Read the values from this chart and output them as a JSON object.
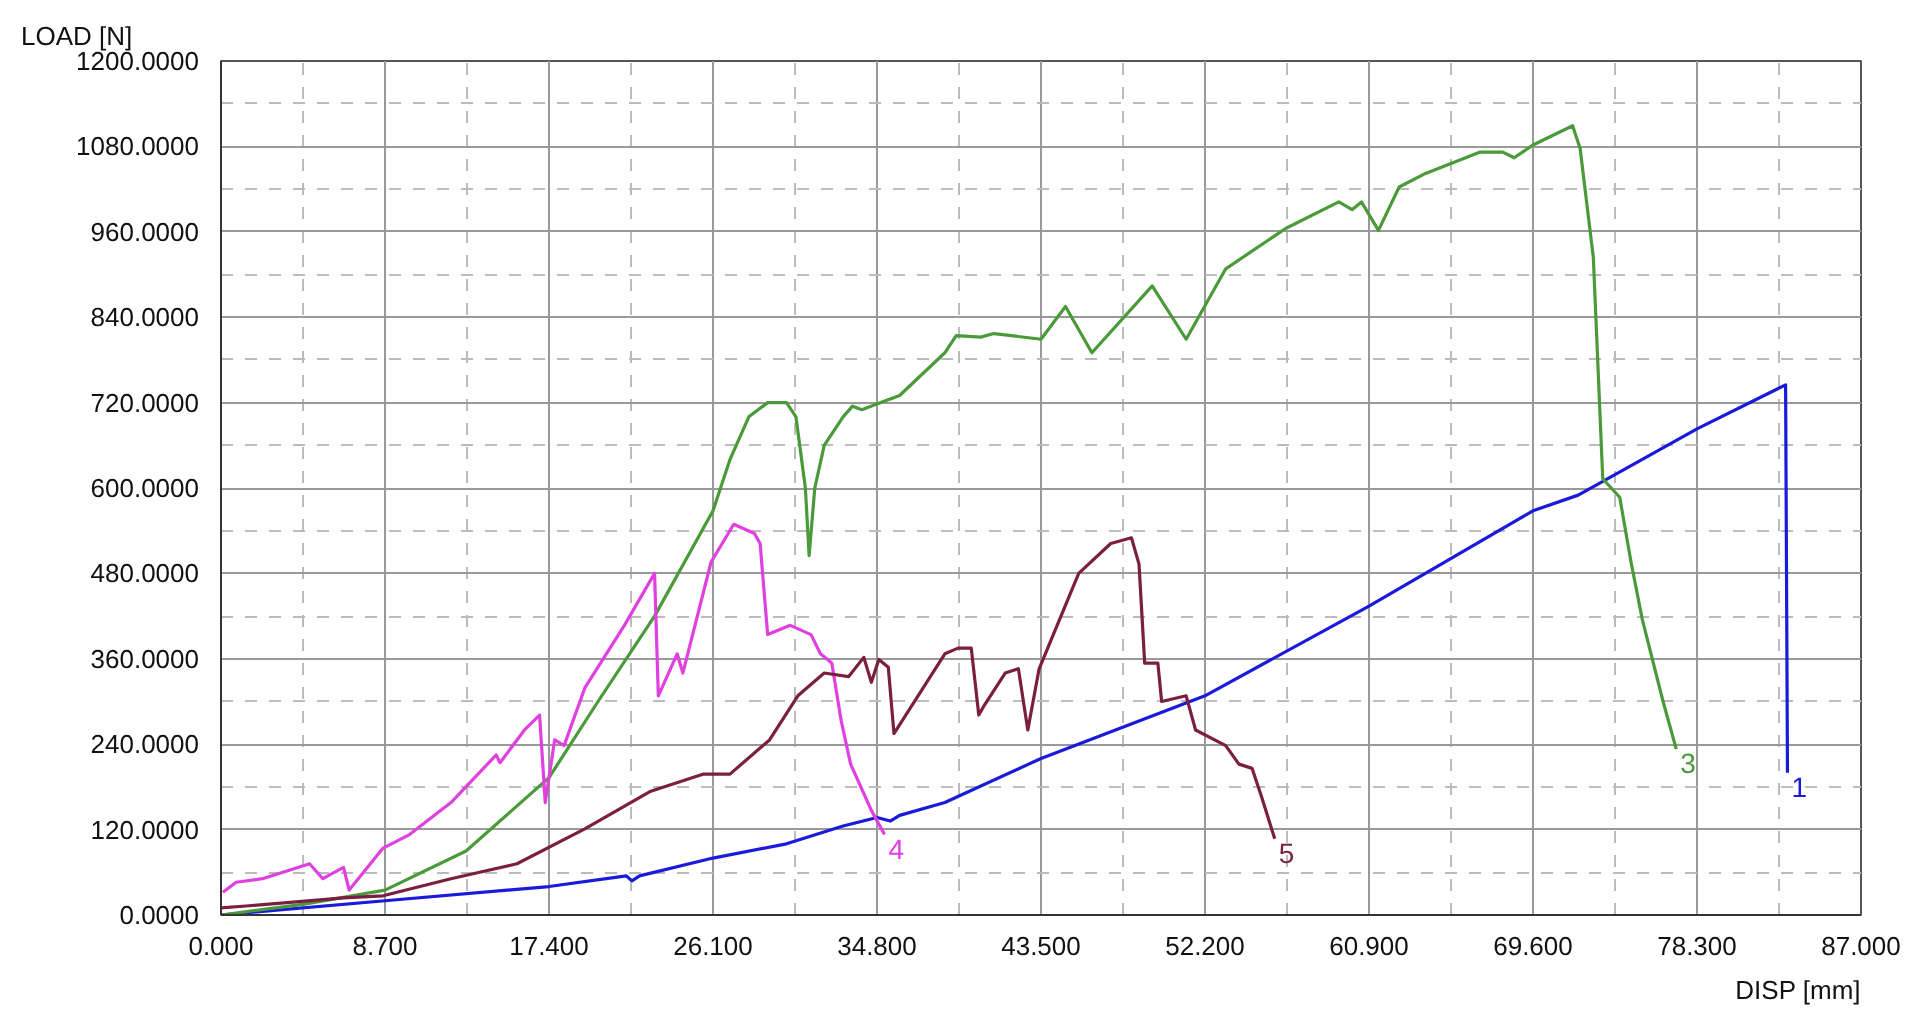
{
  "chart_data": {
    "type": "line",
    "xlabel": "DISP [mm]",
    "ylabel": "LOAD [N]",
    "xlim": [
      0,
      87
    ],
    "ylim": [
      0,
      1200
    ],
    "xticks": [
      {
        "value": 0,
        "label": "0.000"
      },
      {
        "value": 8.7,
        "label": "8.700"
      },
      {
        "value": 17.4,
        "label": "17.400"
      },
      {
        "value": 26.1,
        "label": "26.100"
      },
      {
        "value": 34.8,
        "label": "34.800"
      },
      {
        "value": 43.5,
        "label": "43.500"
      },
      {
        "value": 52.2,
        "label": "52.200"
      },
      {
        "value": 60.9,
        "label": "60.900"
      },
      {
        "value": 69.6,
        "label": "69.600"
      },
      {
        "value": 78.3,
        "label": "78.300"
      },
      {
        "value": 87,
        "label": "87.000"
      }
    ],
    "yticks": [
      {
        "value": 0,
        "label": "0.0000"
      },
      {
        "value": 120,
        "label": "120.0000"
      },
      {
        "value": 240,
        "label": "240.0000"
      },
      {
        "value": 360,
        "label": "360.0000"
      },
      {
        "value": 480,
        "label": "480.0000"
      },
      {
        "value": 600,
        "label": "600.0000"
      },
      {
        "value": 720,
        "label": "720.0000"
      },
      {
        "value": 840,
        "label": "840.0000"
      },
      {
        "value": 960,
        "label": "960.0000"
      },
      {
        "value": 1080,
        "label": "1080.0000"
      },
      {
        "value": 1200,
        "label": "1200.0000"
      }
    ],
    "grid": true,
    "series": [
      {
        "name": "1",
        "color": "#1a1adc",
        "x": [
          0,
          8.7,
          17.4,
          21.5,
          21.8,
          22.2,
          26.1,
          30,
          33,
          34.8,
          35.5,
          36,
          38.4,
          43.5,
          52.2,
          60.9,
          69.6,
          72,
          78.3,
          83.0,
          83.1
        ],
        "values": [
          0,
          20,
          40,
          55,
          48,
          55,
          80,
          100,
          125,
          137,
          132,
          140,
          158,
          220,
          308,
          434,
          568,
          590,
          683,
          745,
          200
        ]
      },
      {
        "name": "3",
        "color": "#4a9a3a",
        "x": [
          0,
          4.35,
          8.7,
          13,
          17.4,
          20,
          23,
          26.1,
          27,
          28,
          29,
          30,
          30.5,
          31,
          31.2,
          31.5,
          32,
          33,
          33.5,
          34,
          35,
          36,
          38.4,
          39,
          40.3,
          41,
          43.5,
          44.8,
          46.2,
          49.4,
          51.2,
          53.3,
          56.5,
          59.3,
          60,
          60.5,
          61.4,
          62.5,
          63.9,
          66.8,
          68,
          68.6,
          69.6,
          71.7,
          72.1,
          72.8,
          73.3,
          74.2,
          74.8,
          75.4,
          76.5,
          77.2
        ],
        "values": [
          0,
          15,
          35,
          90,
          193,
          300,
          420,
          568,
          640,
          700,
          720,
          720,
          700,
          600,
          505,
          600,
          660,
          700,
          715,
          710,
          720,
          730,
          790,
          814,
          812,
          817,
          809,
          855,
          790,
          884,
          809,
          908,
          965,
          1002,
          991,
          1002,
          962,
          1023,
          1042,
          1072,
          1072,
          1064,
          1082,
          1109,
          1077,
          924,
          613,
          587,
          496,
          415,
          300,
          233
        ]
      },
      {
        "name": "4",
        "color": "#e040e0",
        "x": [
          0.1,
          0.8,
          2.2,
          4.7,
          5.4,
          6.5,
          6.8,
          8.6,
          10.0,
          12.2,
          14.6,
          14.8,
          16.1,
          16.9,
          17.2,
          17.7,
          18.2,
          19.3,
          21.4,
          23.0,
          23.2,
          24.2,
          24.5,
          26.0,
          27.2,
          28.3,
          28.6,
          29.0,
          30.2,
          31.3,
          31.8,
          32.4,
          32.9,
          33.4,
          34.5,
          35.2
        ],
        "values": [
          32,
          46,
          51,
          72,
          51,
          67,
          35,
          94,
          113,
          158,
          225,
          214,
          260,
          281,
          158,
          246,
          238,
          319,
          407,
          480,
          308,
          367,
          340,
          496,
          549,
          536,
          522,
          394,
          407,
          394,
          367,
          354,
          273,
          212,
          147,
          113
        ]
      },
      {
        "name": "5",
        "color": "#7a1f3f",
        "x": [
          0,
          1.5,
          6.5,
          8.6,
          12.2,
          15.7,
          19.3,
          22.8,
          25.6,
          27.0,
          29.1,
          30.6,
          32.0,
          33.3,
          34.1,
          34.5,
          34.9,
          35.4,
          35.7,
          38.4,
          39.1,
          39.8,
          40.2,
          40.5,
          41.6,
          42.3,
          42.8,
          43.4,
          45.5,
          47.2,
          48.3,
          48.7,
          49.0,
          49.7,
          49.9,
          51.2,
          51.7,
          53.3,
          54.0,
          54.7,
          55.2,
          55.9
        ],
        "values": [
          10,
          13,
          24,
          27,
          51,
          72,
          121,
          174,
          198,
          198,
          246,
          308,
          340,
          335,
          362,
          327,
          359,
          348,
          255,
          367,
          375,
          375,
          281,
          295,
          340,
          346,
          260,
          346,
          480,
          522,
          530,
          493,
          354,
          354,
          300,
          308,
          260,
          238,
          212,
          206,
          166,
          107
        ]
      }
    ]
  }
}
